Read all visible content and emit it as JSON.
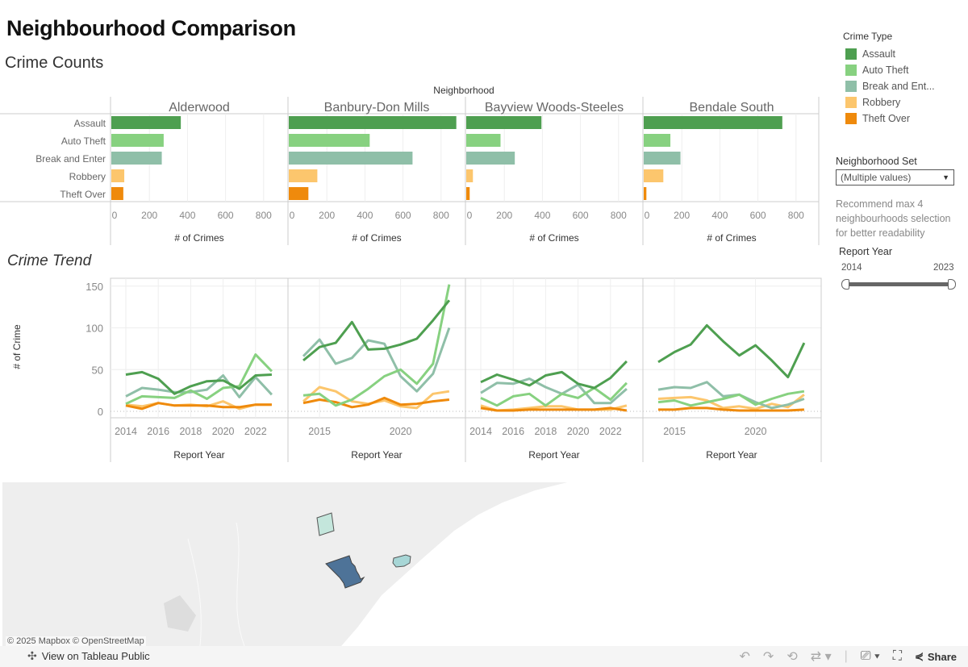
{
  "dashboard": {
    "title": "Neighbourhood Comparison",
    "counts_title": "Crime Counts",
    "trend_title": "Crime Trend"
  },
  "legend": {
    "title": "Crime Type",
    "items": [
      {
        "label": "Assault",
        "color": "#4e9f50"
      },
      {
        "label": "Auto Theft",
        "color": "#87d180"
      },
      {
        "label": "Break and Ent...",
        "color": "#8fbfa8"
      },
      {
        "label": "Robbery",
        "color": "#fcc66d"
      },
      {
        "label": "Theft Over",
        "color": "#ef8a0c"
      }
    ]
  },
  "filters": {
    "neighborhood_set_label": "Neighborhood  Set",
    "neighborhood_set_value": "(Multiple values)",
    "recommendation": "Recommend max 4 neighbourhoods selection for better readability",
    "report_year_label": "Report Year",
    "report_year_min": "2014",
    "report_year_max": "2023"
  },
  "map": {
    "attribution": "© 2025 Mapbox  © OpenStreetMap"
  },
  "footer": {
    "view_on": "View on Tableau Public",
    "share": "Share"
  },
  "chart_data": [
    {
      "type": "bar",
      "title": "Crime Counts",
      "column_header": "Neighborhood",
      "xlabel": "# of Crimes",
      "xlim": [
        0,
        900
      ],
      "xticks": [
        "0",
        "200",
        "400",
        "600",
        "800"
      ],
      "categories": [
        "Assault",
        "Auto Theft",
        "Break and Enter",
        "Robbery",
        "Theft Over"
      ],
      "series": [
        {
          "name": "Alderwood",
          "values": [
            365,
            275,
            265,
            68,
            63
          ]
        },
        {
          "name": "Banbury-Don Mills",
          "values": [
            880,
            425,
            650,
            150,
            103
          ]
        },
        {
          "name": "Bayview Woods-Steeles",
          "values": [
            395,
            180,
            255,
            35,
            18
          ]
        },
        {
          "name": "Bendale South",
          "values": [
            728,
            140,
            193,
            103,
            14
          ]
        }
      ]
    },
    {
      "type": "line",
      "title": "Crime Trend",
      "xlabel": "Report Year",
      "ylabel": "# of Crime",
      "ylim": [
        0,
        155
      ],
      "yticks": [
        "0",
        "50",
        "100",
        "150"
      ],
      "x": [
        2014,
        2015,
        2016,
        2017,
        2018,
        2019,
        2020,
        2021,
        2022,
        2023
      ],
      "panels": [
        {
          "name": "Alderwood",
          "xticks": [
            "2014",
            "2016",
            "2018",
            "2020",
            "2022"
          ],
          "series": [
            {
              "name": "Assault",
              "values": [
                44,
                47,
                39,
                21,
                30,
                36,
                37,
                27,
                43,
                44
              ]
            },
            {
              "name": "Auto Theft",
              "values": [
                9,
                18,
                17,
                16,
                25,
                15,
                28,
                30,
                68,
                48
              ]
            },
            {
              "name": "Break and Enter",
              "values": [
                18,
                28,
                26,
                23,
                23,
                26,
                43,
                17,
                41,
                20
              ]
            },
            {
              "name": "Robbery",
              "values": [
                8,
                6,
                10,
                7,
                8,
                6,
                12,
                3,
                8,
                8
              ]
            },
            {
              "name": "Theft Over",
              "values": [
                7,
                3,
                10,
                7,
                7,
                7,
                5,
                5,
                8,
                8
              ]
            }
          ]
        },
        {
          "name": "Banbury-Don Mills",
          "xticks": [
            "2015",
            "2020"
          ],
          "series": [
            {
              "name": "Assault",
              "values": [
                61,
                77,
                82,
                107,
                74,
                75,
                80,
                87,
                109,
                133
              ]
            },
            {
              "name": "Auto Theft",
              "values": [
                19,
                21,
                7,
                14,
                27,
                42,
                50,
                33,
                57,
                152
              ]
            },
            {
              "name": "Break and Enter",
              "values": [
                66,
                86,
                57,
                64,
                85,
                81,
                42,
                24,
                45,
                100
              ]
            },
            {
              "name": "Robbery",
              "values": [
                12,
                29,
                24,
                12,
                9,
                13,
                6,
                4,
                21,
                24
              ]
            },
            {
              "name": "Theft Over",
              "values": [
                10,
                14,
                11,
                5,
                8,
                16,
                8,
                9,
                12,
                14
              ]
            }
          ]
        },
        {
          "name": "Bayview Woods-Steeles",
          "xticks": [
            "2014",
            "2016",
            "2018",
            "2020",
            "2022"
          ],
          "series": [
            {
              "name": "Assault",
              "values": [
                35,
                44,
                38,
                31,
                43,
                47,
                33,
                28,
                40,
                60
              ]
            },
            {
              "name": "Auto Theft",
              "values": [
                16,
                7,
                18,
                21,
                7,
                21,
                16,
                28,
                14,
                34
              ]
            },
            {
              "name": "Break and Enter",
              "values": [
                22,
                34,
                33,
                39,
                29,
                21,
                32,
                10,
                10,
                27
              ]
            },
            {
              "name": "Robbery",
              "values": [
                7,
                1,
                2,
                4,
                6,
                6,
                2,
                2,
                2,
                7
              ]
            },
            {
              "name": "Theft Over",
              "values": [
                4,
                1,
                1,
                2,
                2,
                2,
                2,
                2,
                4,
                1
              ]
            }
          ]
        },
        {
          "name": "Bendale South",
          "xticks": [
            "2015",
            "2020"
          ],
          "series": [
            {
              "name": "Assault",
              "values": [
                59,
                71,
                80,
                103,
                84,
                67,
                79,
                61,
                41,
                82
              ]
            },
            {
              "name": "Auto Theft",
              "values": [
                11,
                13,
                7,
                11,
                15,
                20,
                8,
                15,
                21,
                24
              ]
            },
            {
              "name": "Break and Enter",
              "values": [
                26,
                29,
                28,
                35,
                18,
                20,
                11,
                4,
                8,
                15
              ]
            },
            {
              "name": "Robbery",
              "values": [
                15,
                16,
                17,
                13,
                4,
                6,
                3,
                9,
                5,
                20
              ]
            },
            {
              "name": "Theft Over",
              "values": [
                2,
                2,
                4,
                4,
                2,
                1,
                1,
                1,
                1,
                2
              ]
            }
          ]
        }
      ]
    }
  ]
}
